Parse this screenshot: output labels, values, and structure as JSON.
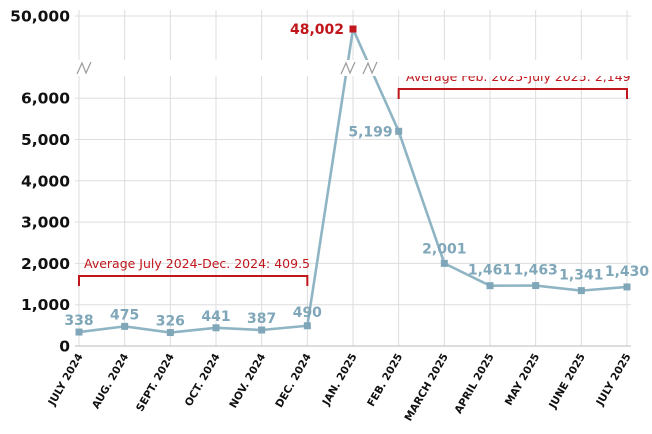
{
  "chart_data": {
    "type": "line",
    "categories": [
      "JULY 2024",
      "AUG. 2024",
      "SEPT. 2024",
      "OCT. 2024",
      "NOV. 2024",
      "DEC. 2024",
      "JAN. 2025",
      "FEB. 2025",
      "MARCH 2025",
      "APRIL 2025",
      "MAY 2025",
      "JUNE 2025",
      "JULY 2025"
    ],
    "values": [
      338,
      475,
      326,
      441,
      387,
      490,
      48002,
      5199,
      2001,
      1461,
      1463,
      1341,
      1430
    ],
    "data_labels": [
      "338",
      "475",
      "326",
      "441",
      "387",
      "490",
      "48,002",
      "5,199",
      "2,001",
      "1,461",
      "1,463",
      "1,341",
      "1,430"
    ],
    "y_ticks": [
      "0",
      "1,000",
      "2,000",
      "3,000",
      "4,000",
      "5,000",
      "6,000",
      "50,000"
    ],
    "y_tick_values": [
      0,
      1000,
      2000,
      3000,
      4000,
      5000,
      6000,
      50000
    ],
    "y_axis_break": "between 6,000 and 50,000",
    "ylim": [
      0,
      50000
    ],
    "title": "",
    "xlabel": "",
    "ylabel": "",
    "grid": true,
    "annotations": [
      {
        "text": "Average July 2024-Dec. 2024: 409.5",
        "from": "JULY 2024",
        "to": "DEC. 2024",
        "value": 409.5
      },
      {
        "text": "Average Feb. 2025-July 2025: 2,149",
        "from": "FEB. 2025",
        "to": "JULY 2025",
        "value": 2149
      }
    ],
    "highlight_index": 6,
    "colors": {
      "line": "#8fb4c4",
      "marker": "#7fa7b9",
      "highlight": "#c0161c",
      "annotation": "#c0161c",
      "grid": "#dddddd",
      "label": "#7fa7b9"
    }
  }
}
